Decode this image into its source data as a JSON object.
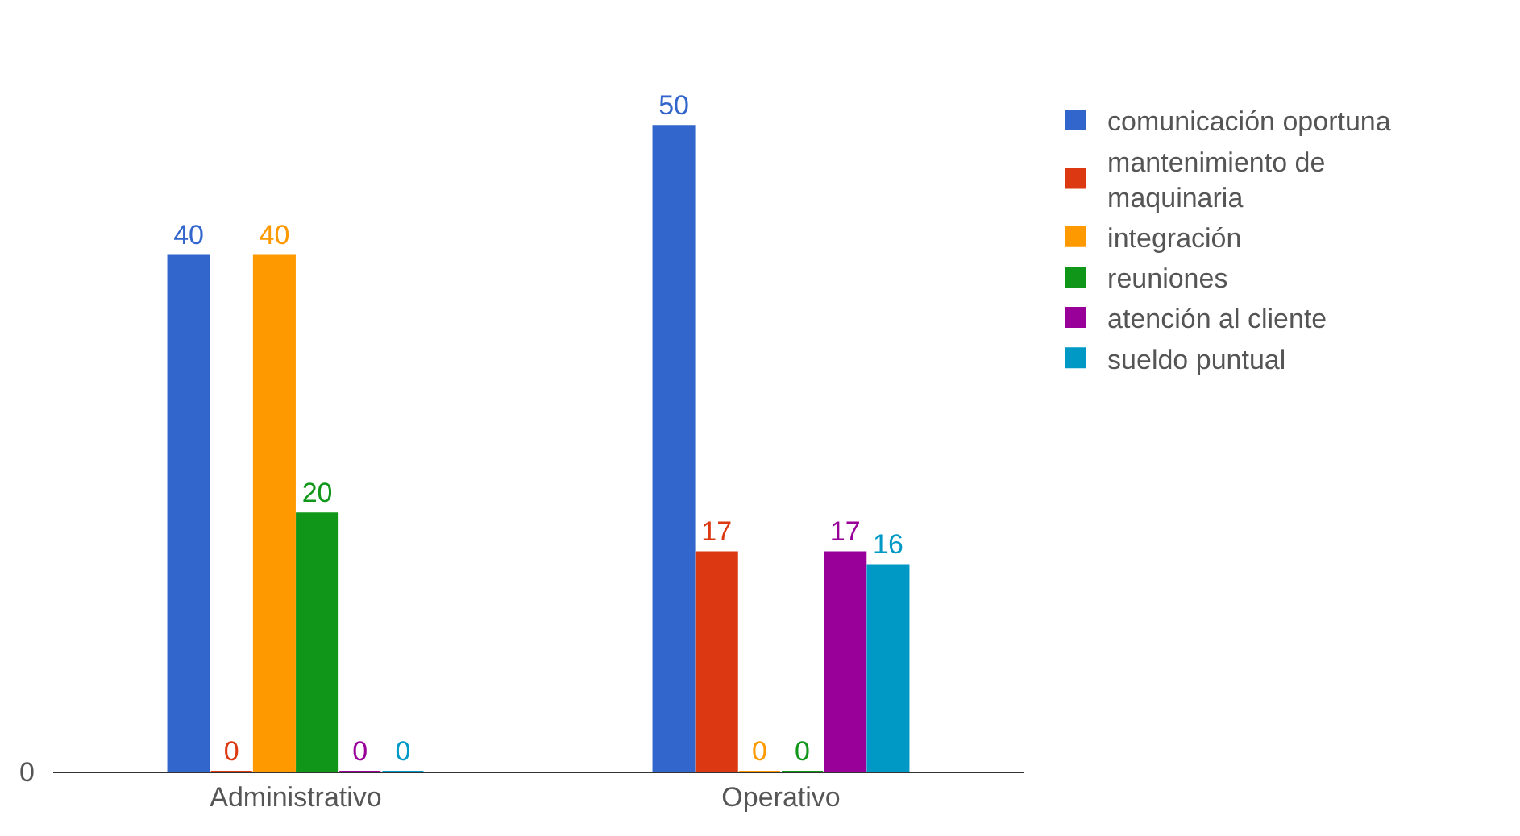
{
  "chart_data": {
    "type": "bar",
    "categories": [
      "Administrativo",
      "Operativo"
    ],
    "series": [
      {
        "name": "comunicación oportuna",
        "color": "#3366cc",
        "values": [
          40,
          50
        ]
      },
      {
        "name": "mantenimiento de maquinaria",
        "color": "#dc3912",
        "values": [
          0,
          17
        ]
      },
      {
        "name": "integración",
        "color": "#ff9900",
        "values": [
          40,
          0
        ]
      },
      {
        "name": "reuniones",
        "color": "#109618",
        "values": [
          20,
          0
        ]
      },
      {
        "name": "atención al cliente",
        "color": "#990099",
        "values": [
          0,
          17
        ]
      },
      {
        "name": "sueldo puntual",
        "color": "#0099c6",
        "values": [
          0,
          16
        ]
      }
    ],
    "annotations": [
      "0"
    ],
    "data_labels": true,
    "legend": "right"
  }
}
